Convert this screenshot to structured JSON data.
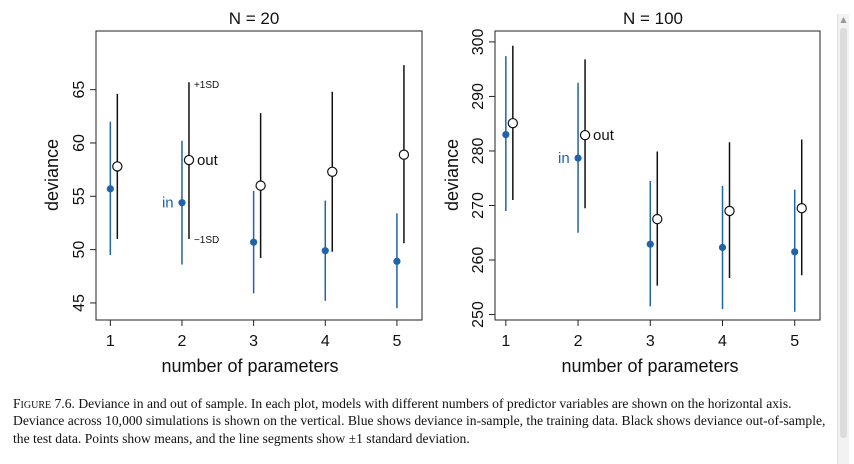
{
  "chart_data": [
    {
      "type": "scatter",
      "title": "N = 20",
      "xlabel": "number of parameters",
      "ylabel": "deviance",
      "x_ticks": [
        "1",
        "2",
        "3",
        "4",
        "5"
      ],
      "y_ticks": [
        "45",
        "50",
        "55",
        "60",
        "65"
      ],
      "xlim": [
        0.8,
        5.35
      ],
      "ylim": [
        43.4,
        70.5
      ],
      "series": [
        {
          "name": "in",
          "color": "#1f63a8",
          "style": "filled",
          "x": [
            1,
            2,
            3,
            4,
            5
          ],
          "mean": [
            55.7,
            54.4,
            50.7,
            49.9,
            48.9
          ],
          "lower": [
            49.5,
            48.6,
            45.9,
            45.2,
            44.5
          ],
          "upper": [
            62.0,
            60.2,
            55.5,
            54.6,
            53.4
          ]
        },
        {
          "name": "out",
          "color": "#111111",
          "style": "open",
          "x": [
            1,
            2,
            3,
            4,
            5
          ],
          "mean": [
            57.8,
            58.4,
            56.0,
            57.3,
            58.9
          ],
          "lower": [
            51.0,
            51.0,
            49.2,
            49.8,
            50.6
          ],
          "upper": [
            64.6,
            65.7,
            62.8,
            64.8,
            67.3
          ]
        }
      ],
      "annotations": {
        "plus_sd": "+1SD",
        "minus_sd": "−1SD"
      }
    },
    {
      "type": "scatter",
      "title": "N = 100",
      "xlabel": "number of parameters",
      "ylabel": "deviance",
      "x_ticks": [
        "1",
        "2",
        "3",
        "4",
        "5"
      ],
      "y_ticks": [
        "250",
        "260",
        "270",
        "280",
        "290",
        "300"
      ],
      "xlim": [
        0.85,
        5.35
      ],
      "ylim": [
        249,
        302
      ],
      "series": [
        {
          "name": "in",
          "color": "#1f63a8",
          "style": "filled",
          "x": [
            1,
            2,
            3,
            4,
            5
          ],
          "mean": [
            283.0,
            278.7,
            262.9,
            262.3,
            261.5
          ],
          "lower": [
            269.0,
            265.0,
            251.5,
            251.0,
            250.5
          ],
          "upper": [
            297.4,
            292.5,
            274.5,
            273.6,
            272.9
          ]
        },
        {
          "name": "out",
          "color": "#111111",
          "style": "open",
          "x": [
            1,
            2,
            3,
            4,
            5
          ],
          "mean": [
            285.1,
            282.9,
            267.5,
            269.0,
            269.5
          ],
          "lower": [
            271.0,
            269.5,
            255.3,
            256.7,
            257.2
          ],
          "upper": [
            299.3,
            296.8,
            279.9,
            281.6,
            282.1
          ]
        }
      ]
    }
  ],
  "caption": {
    "label": "Figure 7.6.",
    "text": "Deviance in and out of sample. In each plot, models with different numbers of predictor variables are shown on the horizontal axis. Deviance across 10,000 simulations is shown on the vertical. Blue shows deviance in-sample, the training data. Black shows deviance out-of-sample, the test data. Points show means, and the line segments show ±1 standard deviation."
  },
  "scrollbar": {
    "up_icon": "▲",
    "down_icon": "▼"
  }
}
